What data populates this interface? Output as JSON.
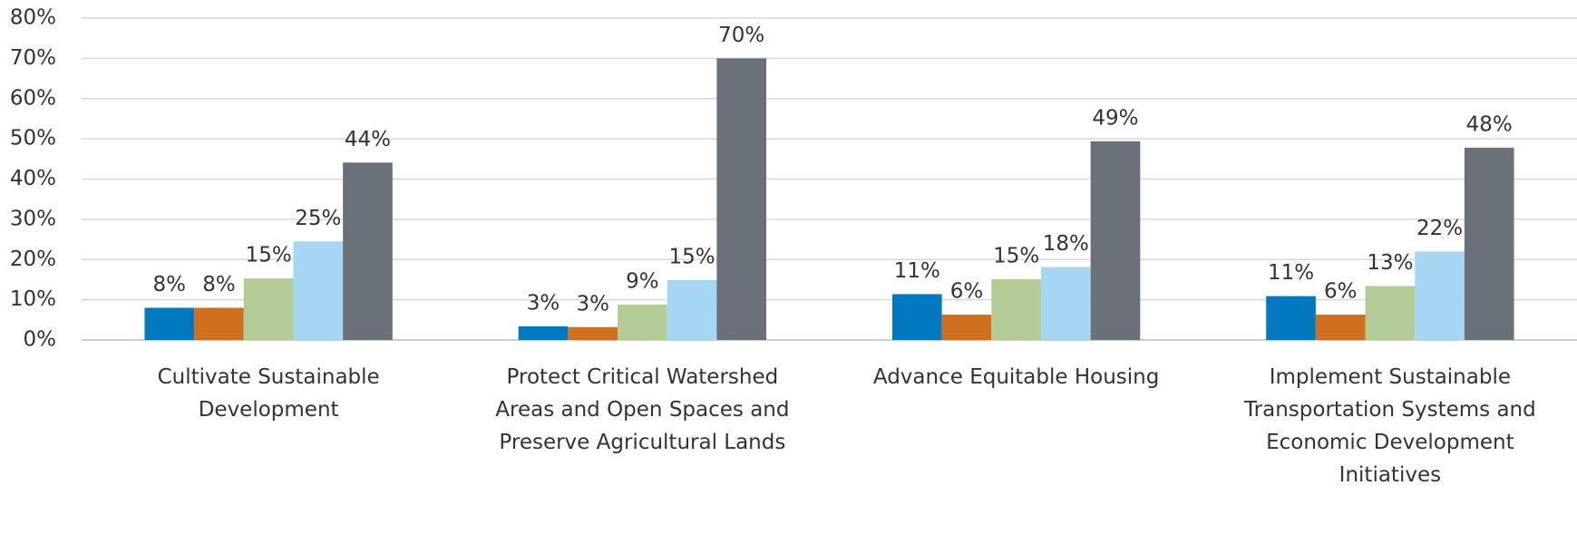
{
  "chart_data": {
    "type": "bar",
    "categories": [
      "Cultivate Sustainable Development",
      "Protect Critical Watershed Areas and Open Spaces and Preserve Agricultural Lands",
      "Advance Equitable Housing",
      "Implement Sustainable Transportation Systems and Economic Development Initiatives"
    ],
    "series": [
      {
        "color": "#0079c1",
        "values": [
          8,
          3.4,
          11.4,
          10.9
        ],
        "value_labels": [
          "8%",
          "3%",
          "11%",
          "11%"
        ]
      },
      {
        "color": "#d0701f",
        "values": [
          8,
          3.2,
          6.3,
          6.3
        ],
        "value_labels": [
          "8%",
          "3%",
          "6%",
          "6%"
        ]
      },
      {
        "color": "#b3cc96",
        "values": [
          15.3,
          8.8,
          15.1,
          13.4
        ],
        "value_labels": [
          "15%",
          "9%",
          "15%",
          "13%"
        ]
      },
      {
        "color": "#a6d7f2",
        "values": [
          24.5,
          14.9,
          18.1,
          22
        ],
        "value_labels": [
          "25%",
          "15%",
          "18%",
          "22%"
        ]
      },
      {
        "color": "#6b7179",
        "values": [
          44.1,
          70,
          49.4,
          47.8
        ],
        "value_labels": [
          "44%",
          "70%",
          "49%",
          "48%"
        ]
      }
    ],
    "ylim": [
      0,
      80
    ],
    "yticks": [
      {
        "value": 0,
        "label": "0%"
      },
      {
        "value": 10,
        "label": "10%"
      },
      {
        "value": 20,
        "label": "20%"
      },
      {
        "value": 30,
        "label": "30%"
      },
      {
        "value": 40,
        "label": "40%"
      },
      {
        "value": 50,
        "label": "50%"
      },
      {
        "value": 60,
        "label": "60%"
      },
      {
        "value": 70,
        "label": "70%"
      },
      {
        "value": 80,
        "label": "80%"
      }
    ],
    "grid": true
  }
}
